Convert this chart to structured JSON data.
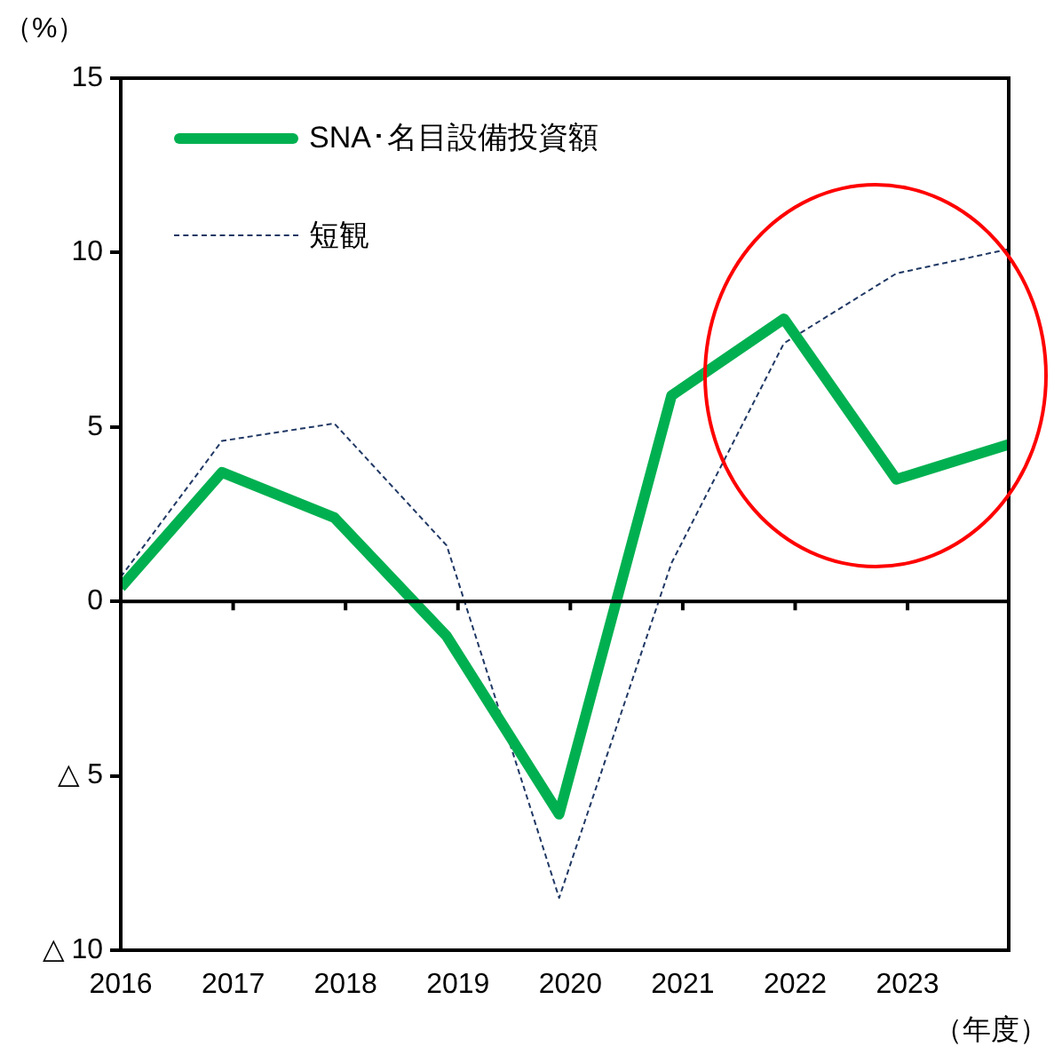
{
  "chart_data": {
    "type": "line",
    "xlabel": "（年度）",
    "ylabel": "（%）",
    "x": [
      2016,
      2016.9,
      2017.9,
      2018.9,
      2019.9,
      2020.9,
      2021.9,
      2022.9,
      2023.9
    ],
    "xlim": [
      2016,
      2023.9
    ],
    "xticks": [
      2016,
      2017,
      2018,
      2019,
      2020,
      2021,
      2022,
      2023
    ],
    "ylim": [
      -10,
      15
    ],
    "yticks": [
      {
        "value": -10,
        "label": "△ 10"
      },
      {
        "value": -5,
        "label": "△ 5"
      },
      0,
      5,
      10,
      15
    ],
    "series": [
      {
        "name": "SNA･名目設備投資額",
        "color": "#00b050",
        "line_style": "solid",
        "values": [
          0.4,
          3.7,
          2.4,
          -1.0,
          -6.1,
          5.9,
          8.1,
          3.5,
          4.5
        ]
      },
      {
        "name": "短観",
        "color": "#203864",
        "line_style": "dashed",
        "values": [
          0.7,
          4.6,
          5.1,
          1.6,
          -8.5,
          1.1,
          7.4,
          9.4,
          10.1
        ]
      }
    ],
    "ref_lines": [
      {
        "axis": "y",
        "value": 0,
        "color": "#000000"
      }
    ],
    "legend": "top left",
    "grid": false,
    "marker": "none"
  }
}
